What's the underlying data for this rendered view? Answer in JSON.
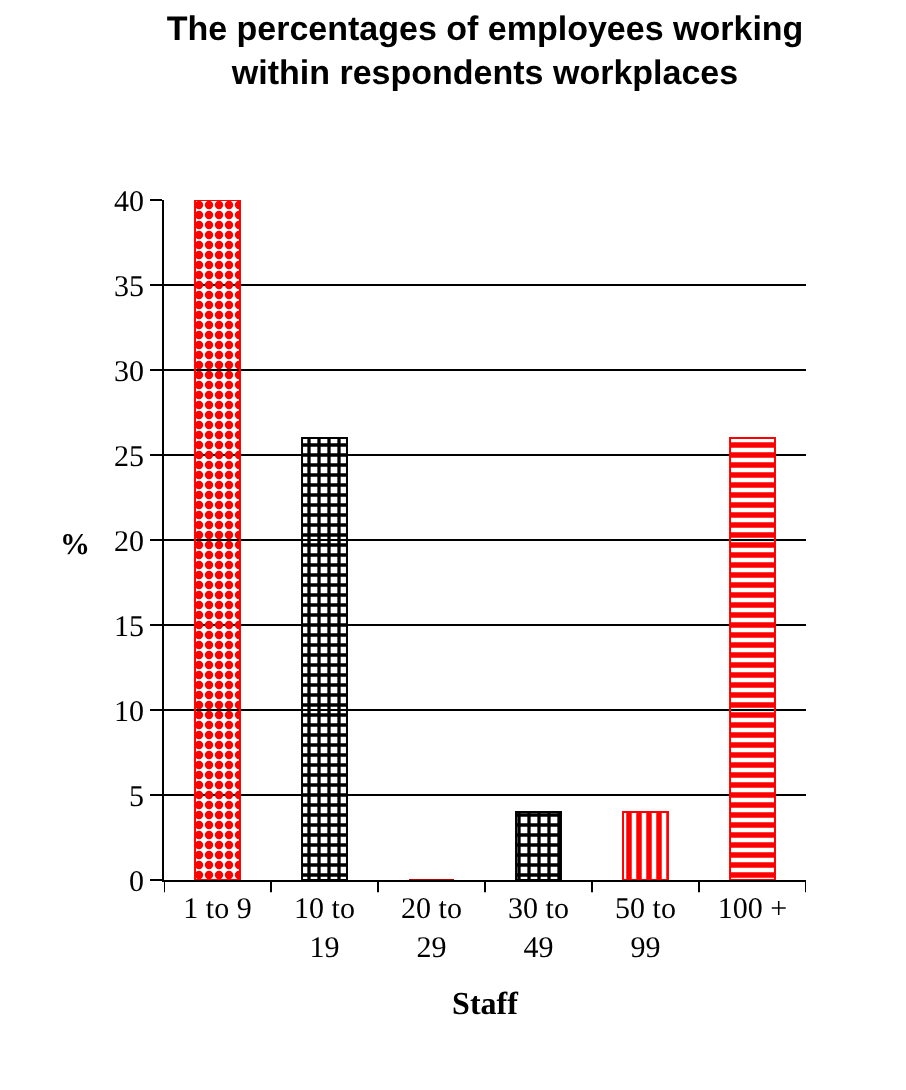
{
  "chart_data": {
    "type": "bar",
    "title": "The percentages of employees working within respondents workplaces",
    "xlabel": "Staff",
    "ylabel": "%",
    "categories": [
      "1 to 9",
      "10 to 19",
      "20 to 29",
      "30 to 49",
      "50 to 99",
      "100 +"
    ],
    "values": [
      40,
      26,
      0,
      4,
      4,
      26
    ],
    "colors": [
      "#ff0000",
      "#000000",
      "#c00000",
      "#000000",
      "#ff0000",
      "#ff0000"
    ],
    "ylim": [
      0,
      40
    ],
    "yticks": [
      0,
      5,
      10,
      15,
      20,
      25,
      30,
      35,
      40
    ],
    "grid": "y"
  }
}
